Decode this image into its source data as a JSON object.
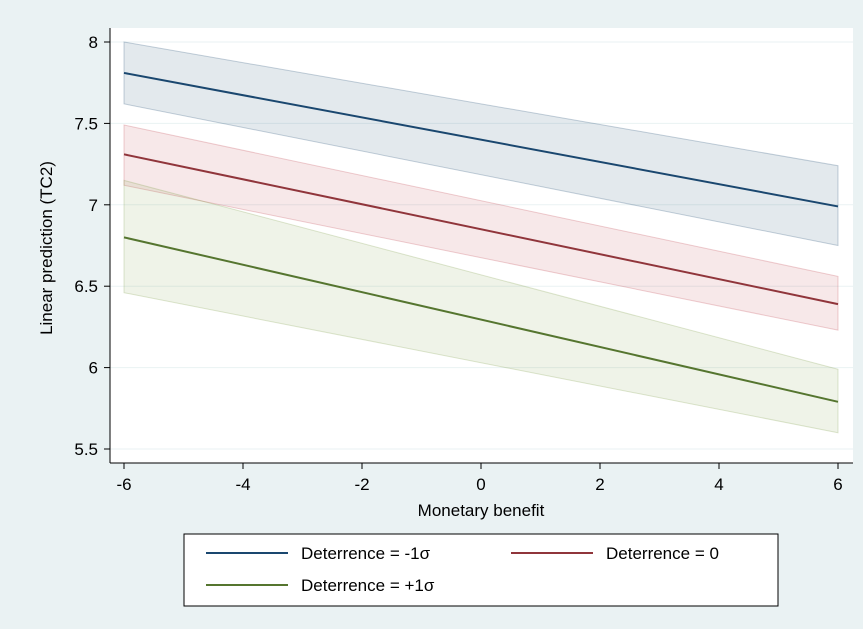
{
  "chart_data": {
    "type": "line",
    "xlabel": "Monetary benefit",
    "ylabel": "Linear prediction (TC2)",
    "xlim": [
      -6,
      6
    ],
    "ylim": [
      5.5,
      8
    ],
    "x_ticks": [
      -6,
      -4,
      -2,
      0,
      2,
      4,
      6
    ],
    "x_tick_labels": [
      "-6",
      "-4",
      "-2",
      "0",
      "2",
      "4",
      "6"
    ],
    "y_ticks": [
      5.5,
      6,
      6.5,
      7,
      7.5,
      8
    ],
    "y_tick_labels": [
      "5.5",
      "6",
      "6.5",
      "7",
      "7.5",
      "8"
    ],
    "grid": true,
    "legend_position": "bottom",
    "series": [
      {
        "name": "Deterrence = -1σ",
        "color": "#1a476f",
        "band_color": "#1a476f",
        "x": [
          -6,
          6
        ],
        "y": [
          7.81,
          6.99
        ],
        "ci_lower": [
          7.62,
          6.75
        ],
        "ci_upper": [
          8.0,
          7.24
        ]
      },
      {
        "name": "Deterrence = 0",
        "color": "#90353b",
        "band_color": "#c0404a",
        "x": [
          -6,
          6
        ],
        "y": [
          7.31,
          6.39
        ],
        "ci_lower": [
          7.12,
          6.23
        ],
        "ci_upper": [
          7.49,
          6.56
        ]
      },
      {
        "name": "Deterrence = +1σ",
        "color": "#55752f",
        "band_color": "#7a9a45",
        "x": [
          -6,
          6
        ],
        "y": [
          6.8,
          5.79
        ],
        "ci_lower": [
          6.46,
          5.6
        ],
        "ci_upper": [
          7.15,
          5.99
        ]
      }
    ]
  }
}
